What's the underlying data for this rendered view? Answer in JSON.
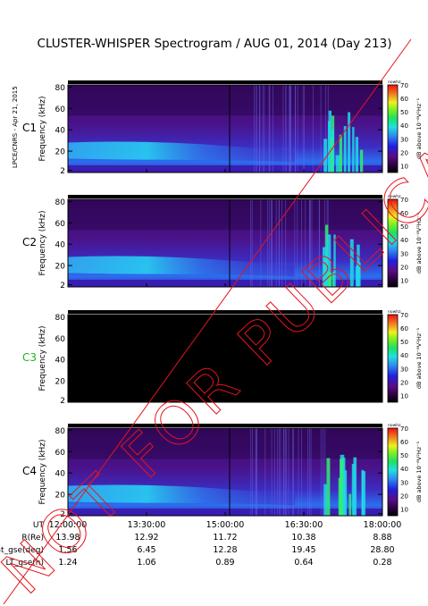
{
  "title": "CLUSTER-WHISPER Spectrogram / AUG 01, 2014 (Day 213)",
  "side_note": "LPCE/CNRS - Apr 21, 2015",
  "watermark": "NOT FOR PUBLICATION",
  "colors": {
    "background": "#ffffff",
    "no_data": "#000000",
    "watermark": "#e4141e",
    "c3_label": "#22b022"
  },
  "chart_data": {
    "type": "heatmap",
    "ylabel": "Frequency (kHz)",
    "colorbar_label": "dB above 10⁻⁸V²Hz⁻¹",
    "colorbar_header": "nowhz",
    "colorbar_ticks": [
      "70",
      "60",
      "50",
      "40",
      "30",
      "20",
      "10"
    ],
    "colorbar_range": [
      5,
      70
    ],
    "xlim": [
      "12:00:00",
      "18:00:00"
    ],
    "ylim": [
      0,
      82
    ],
    "y_ticks": [
      "80",
      "60",
      "40",
      "20",
      "2"
    ],
    "x_ticks": [
      "12:00:00",
      "13:30:00",
      "15:00:00",
      "16:30:00",
      "18:00:00"
    ],
    "panels": [
      {
        "name": "C1",
        "has_data": true
      },
      {
        "name": "C2",
        "has_data": true
      },
      {
        "name": "C3",
        "has_data": false
      },
      {
        "name": "C4",
        "has_data": true
      }
    ]
  },
  "ephemeris": {
    "labels": [
      "UT",
      "R(Re)",
      "Lat_gse(deg)",
      "LT_gse(h)"
    ],
    "rows": [
      [
        "13.98",
        "12.92",
        "11.72",
        "10.38",
        "8.88"
      ],
      [
        "1.56",
        "6.45",
        "12.28",
        "19.45",
        "28.80"
      ],
      [
        "1.24",
        "1.06",
        "0.89",
        "0.64",
        "0.28"
      ]
    ]
  }
}
